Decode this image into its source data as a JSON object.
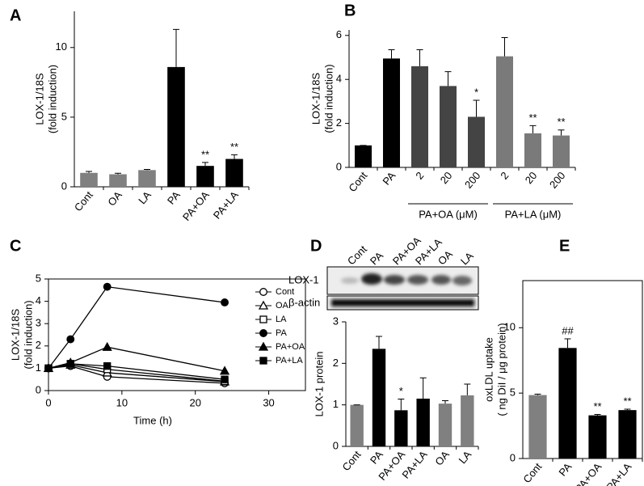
{
  "chart_data": [
    {
      "panel": "A",
      "type": "bar",
      "ylabel": [
        "LOX-1/18S",
        "(fold induction)"
      ],
      "categories": [
        "Cont",
        "OA",
        "LA",
        "PA",
        "PA+OA",
        "PA+LA"
      ],
      "values": [
        1.0,
        0.9,
        1.2,
        8.6,
        1.5,
        2.0
      ],
      "errors": [
        0.1,
        0.07,
        0.05,
        2.7,
        0.25,
        0.3
      ],
      "colors": [
        "#808080",
        "#808080",
        "#808080",
        "#000000",
        "#000000",
        "#000000"
      ],
      "markers": [
        null,
        null,
        null,
        null,
        "**",
        "**"
      ],
      "ylim": [
        0,
        12.6
      ],
      "yticks": [
        0,
        5,
        10
      ],
      "frame": false
    },
    {
      "panel": "B",
      "type": "bar",
      "ylabel": [
        "LOX-1/18S",
        "(fold induction)"
      ],
      "categories": [
        "Cont",
        "PA",
        "2",
        "20",
        "200",
        "2",
        "20",
        "200"
      ],
      "values": [
        1.0,
        4.95,
        4.6,
        3.7,
        2.3,
        5.05,
        1.55,
        1.45
      ],
      "errors": [
        0,
        0.4,
        0.75,
        0.65,
        0.75,
        0.85,
        0.35,
        0.25
      ],
      "colors": [
        "#000000",
        "#000000",
        "#444444",
        "#444444",
        "#444444",
        "#7a7a7a",
        "#7a7a7a",
        "#7a7a7a"
      ],
      "markers": [
        null,
        null,
        null,
        null,
        "*",
        null,
        "**",
        "**"
      ],
      "groups": [
        "PA+OA (μM)",
        "PA+LA (μM)"
      ],
      "ylim": [
        0,
        6.25
      ],
      "yticks": [
        0,
        2,
        4,
        6
      ],
      "frame": false
    },
    {
      "panel": "C",
      "type": "line",
      "ylabel": [
        "LOX-1/18S",
        "(fold induction)"
      ],
      "xlabel": "Time (h)",
      "x": [
        0,
        3,
        8,
        24
      ],
      "series": [
        {
          "name": "Cont",
          "color": "#000000",
          "marker": "circle",
          "filled": false,
          "values": [
            1,
            1.1,
            0.62,
            0.33
          ]
        },
        {
          "name": "OA",
          "color": "#000000",
          "marker": "triangle",
          "filled": false,
          "values": [
            1,
            1.15,
            0.8,
            0.4
          ]
        },
        {
          "name": "LA",
          "color": "#000000",
          "marker": "square",
          "filled": false,
          "values": [
            1,
            1.2,
            0.95,
            0.42
          ]
        },
        {
          "name": "PA",
          "color": "#000000",
          "marker": "circle",
          "filled": true,
          "values": [
            1,
            2.3,
            4.65,
            3.95
          ]
        },
        {
          "name": "PA+OA",
          "color": "#000000",
          "marker": "triangle",
          "filled": true,
          "values": [
            1,
            1.25,
            1.95,
            0.88
          ]
        },
        {
          "name": "PA+LA",
          "color": "#000000",
          "marker": "square",
          "filled": true,
          "values": [
            1,
            1.2,
            1.1,
            0.5
          ]
        }
      ],
      "xlim": [
        0,
        35
      ],
      "xticks": [
        0,
        10,
        20,
        30
      ],
      "ylim": [
        0,
        5
      ],
      "yticks": [
        0,
        1,
        2,
        3,
        4,
        5
      ],
      "frame": true,
      "legend": "right"
    },
    {
      "panel": "D",
      "type": "bar",
      "ylabel": [
        "LOX-1 protein"
      ],
      "blot": {
        "lanes": [
          "Cont",
          "PA",
          "PA+OA",
          "PA+LA",
          "OA",
          "LA"
        ],
        "rows": [
          "LOX-1",
          "β-actin"
        ]
      },
      "categories": [
        "Cont",
        "PA",
        "PA+OA",
        "PA+LA",
        "OA",
        "LA"
      ],
      "values": [
        1.0,
        2.35,
        0.87,
        1.15,
        1.03,
        1.23
      ],
      "errors": [
        0,
        0.3,
        0.27,
        0.5,
        0.07,
        0.27
      ],
      "colors": [
        "#808080",
        "#000000",
        "#000000",
        "#000000",
        "#808080",
        "#808080"
      ],
      "markers": [
        null,
        null,
        "*",
        null,
        null,
        null
      ],
      "ylim": [
        0,
        3
      ],
      "yticks": [
        0,
        1,
        2,
        3
      ],
      "frame": false
    },
    {
      "panel": "E",
      "type": "bar",
      "ylabel": [
        "oxLDL uptake",
        "( ng DiI / μg protein)"
      ],
      "categories": [
        "Cont",
        "PA",
        "PA+OA",
        "PA+LA"
      ],
      "values": [
        4.85,
        8.45,
        3.3,
        3.7
      ],
      "errors": [
        0.07,
        0.7,
        0.07,
        0.07
      ],
      "colors": [
        "#808080",
        "#000000",
        "#000000",
        "#000000"
      ],
      "markers": [
        null,
        "##",
        "**",
        "**"
      ],
      "ylim": [
        0,
        13.6
      ],
      "yticks": [
        0,
        5,
        10
      ],
      "frame": true
    }
  ]
}
